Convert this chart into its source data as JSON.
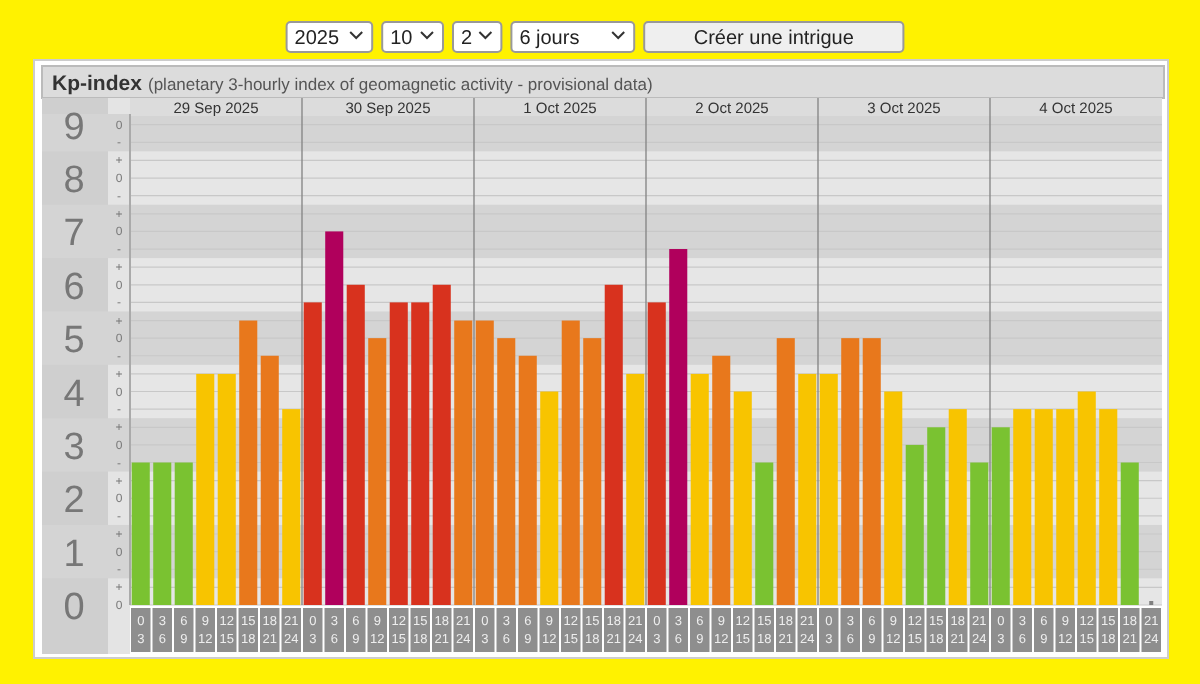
{
  "chart_data": {
    "type": "bar",
    "title": "Kp-index",
    "subtitle": "(planetary 3-hourly index of geomagnetic activity - provisional data)",
    "categories": [
      "0\n3",
      "3\n6",
      "6\n9",
      "9\n12",
      "12\n15",
      "15\n18",
      "18\n21",
      "21\n24",
      "0\n3",
      "3\n6",
      "6\n9",
      "9\n12",
      "12\n15",
      "15\n18",
      "18\n21",
      "21\n24",
      "0\n3",
      "3\n6",
      "6\n9",
      "9\n12",
      "12\n15",
      "15\n18",
      "18\n21",
      "21\n24",
      "0\n3",
      "3\n6",
      "6\n9",
      "9\n12",
      "12\n15",
      "15\n18",
      "18\n21",
      "21\n24",
      "0\n3",
      "3\n6",
      "6\n9",
      "9\n12",
      "12\n15",
      "15\n18",
      "18\n21",
      "21\n24",
      "0\n3",
      "3\n6",
      "6\n9",
      "9\n12",
      "12\n15",
      "15\n18",
      "18\n21",
      "21\n24"
    ],
    "values": [
      2.67,
      2.67,
      2.67,
      4.33,
      4.33,
      5.33,
      4.67,
      3.67,
      5.67,
      7.0,
      6.0,
      5.0,
      5.67,
      5.67,
      6.0,
      5.33,
      5.33,
      5.0,
      4.67,
      4.0,
      5.33,
      5.0,
      6.0,
      4.33,
      5.67,
      6.67,
      4.33,
      4.67,
      4.0,
      2.67,
      5.0,
      4.33,
      4.33,
      5.0,
      5.0,
      4.0,
      3.0,
      3.33,
      3.67,
      2.67,
      3.33,
      3.67,
      3.67,
      3.67,
      4.0,
      3.67,
      2.67,
      null
    ],
    "colors": [
      "#7ac231",
      "#7ac231",
      "#7ac231",
      "#f8c400",
      "#f8c400",
      "#e8781c",
      "#e8781c",
      "#f8c400",
      "#d8321e",
      "#b0005c",
      "#d8321e",
      "#e8781c",
      "#d8321e",
      "#d8321e",
      "#d8321e",
      "#e8781c",
      "#e8781c",
      "#e8781c",
      "#e8781c",
      "#f8c400",
      "#e8781c",
      "#e8781c",
      "#d8321e",
      "#f8c400",
      "#d8321e",
      "#b0005c",
      "#f8c400",
      "#e8781c",
      "#f8c400",
      "#7ac231",
      "#e8781c",
      "#f8c400",
      "#f8c400",
      "#e8781c",
      "#e8781c",
      "#f8c400",
      "#7ac231",
      "#7ac231",
      "#f8c400",
      "#7ac231",
      "#7ac231",
      "#f8c400",
      "#f8c400",
      "#f8c400",
      "#f8c400",
      "#f8c400",
      "#7ac231",
      "#808080"
    ],
    "ylim": [
      0,
      9.2
    ],
    "yticks": [
      0,
      {
        "value": 0.33,
        "label": null
      },
      {
        "value": 0.67,
        "label": null
      },
      1,
      {
        "value": 1.33,
        "label": null
      },
      {
        "value": 1.67,
        "label": null
      },
      2,
      {
        "value": 2.33,
        "label": null
      },
      {
        "value": 2.67,
        "label": null
      },
      3,
      {
        "value": 3.33,
        "label": null
      },
      {
        "value": 3.67,
        "label": null
      },
      4,
      {
        "value": 4.33,
        "label": null
      },
      {
        "value": 4.67,
        "label": null
      },
      5,
      {
        "value": 5.33,
        "label": null
      },
      {
        "value": 5.67,
        "label": null
      },
      6,
      {
        "value": 6.33,
        "label": null
      },
      {
        "value": 6.67,
        "label": null
      },
      7,
      {
        "value": 7.33,
        "label": null
      },
      {
        "value": 7.67,
        "label": null
      },
      8,
      {
        "value": 8.33,
        "label": null
      },
      {
        "value": 8.67,
        "label": null
      },
      9
    ],
    "grid": "y",
    "bands": [
      {
        "axis": "y",
        "from": 0.5,
        "to": 1.5,
        "color": "#d4d4d4"
      },
      {
        "axis": "y",
        "from": 2.5,
        "to": 3.5,
        "color": "#d4d4d4"
      },
      {
        "axis": "y",
        "from": 4.5,
        "to": 5.5,
        "color": "#d4d4d4"
      },
      {
        "axis": "y",
        "from": 6.5,
        "to": 7.5,
        "color": "#d4d4d4"
      },
      {
        "axis": "y",
        "from": 8.5,
        "to": 9.2,
        "color": "#d4d4d4"
      }
    ],
    "annotations": [
      "29 Sep 2025",
      "30 Sep 2025",
      "1 Oct 2025",
      "2 Oct 2025",
      "3 Oct 2025",
      "4 Oct 2025",
      "2025",
      "10",
      "2",
      "6 jours",
      "Créer une intrigue",
      "0",
      "+",
      "-",
      "0",
      "+",
      "-",
      "0",
      "+",
      "-",
      "0",
      "+",
      "-",
      "0",
      "+",
      "-",
      "0",
      "+",
      "-",
      "0",
      "+",
      "-",
      "0",
      "+",
      "-",
      "0",
      "+",
      "-",
      "0"
    ]
  }
}
